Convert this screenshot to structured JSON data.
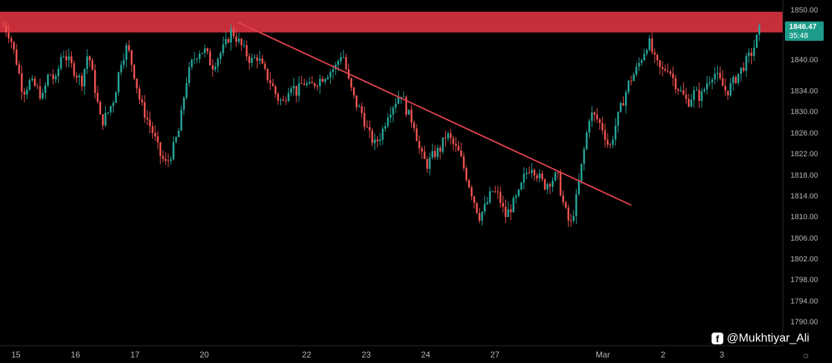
{
  "chart_data": {
    "type": "candlestick",
    "ylim": [
      1786,
      1852
    ],
    "y_ticks": [
      "1850.00",
      "1846.00",
      "1840.00",
      "1834.00",
      "1830.00",
      "1826.00",
      "1822.00",
      "1818.00",
      "1814.00",
      "1810.00",
      "1806.00",
      "1802.00",
      "1798.00",
      "1794.00",
      "1790.00"
    ],
    "x_ticks": [
      "15",
      "16",
      "17",
      "20",
      "22",
      "23",
      "24",
      "27",
      "Mar",
      "2",
      "3"
    ],
    "last_price": "1846.47",
    "countdown": "35:48",
    "resistance_zone": [
      1845.6,
      1849.6
    ],
    "trendline": {
      "from": 1847.6,
      "to": 1812.2
    },
    "colors": {
      "up": "#26a69a",
      "down": "#ef5350",
      "zone": "#c62f3a",
      "trendline": "#e0424f",
      "tag": "#1d9c8a"
    },
    "path": [
      1847,
      1845,
      1840,
      1834,
      1836,
      1835,
      1833,
      1838,
      1836,
      1842,
      1840,
      1838,
      1836,
      1842,
      1835,
      1828,
      1830,
      1833,
      1840,
      1843,
      1838,
      1832,
      1829,
      1826,
      1822,
      1820,
      1823,
      1827,
      1836,
      1840,
      1842,
      1842,
      1839,
      1841,
      1843,
      1846,
      1844,
      1842,
      1840,
      1841,
      1838,
      1836,
      1833,
      1832,
      1836,
      1834,
      1836,
      1835,
      1836,
      1837,
      1838,
      1839,
      1842,
      1836,
      1832,
      1830,
      1826,
      1824,
      1826,
      1830,
      1832,
      1834,
      1830,
      1828,
      1822,
      1820,
      1822,
      1823,
      1826,
      1824,
      1822,
      1818,
      1814,
      1810,
      1812,
      1815,
      1814,
      1810,
      1812,
      1814,
      1818,
      1820,
      1818,
      1816,
      1817,
      1818,
      1812,
      1808,
      1814,
      1822,
      1830,
      1829,
      1827,
      1823,
      1828,
      1832,
      1836,
      1838,
      1841,
      1844,
      1840,
      1838,
      1839,
      1836,
      1834,
      1832,
      1834,
      1833,
      1836,
      1838,
      1836,
      1834,
      1836,
      1838,
      1840,
      1842,
      1846
    ]
  },
  "watermark": {
    "icon": "facebook-icon",
    "text": "@Mukhtiyar_Ali"
  }
}
